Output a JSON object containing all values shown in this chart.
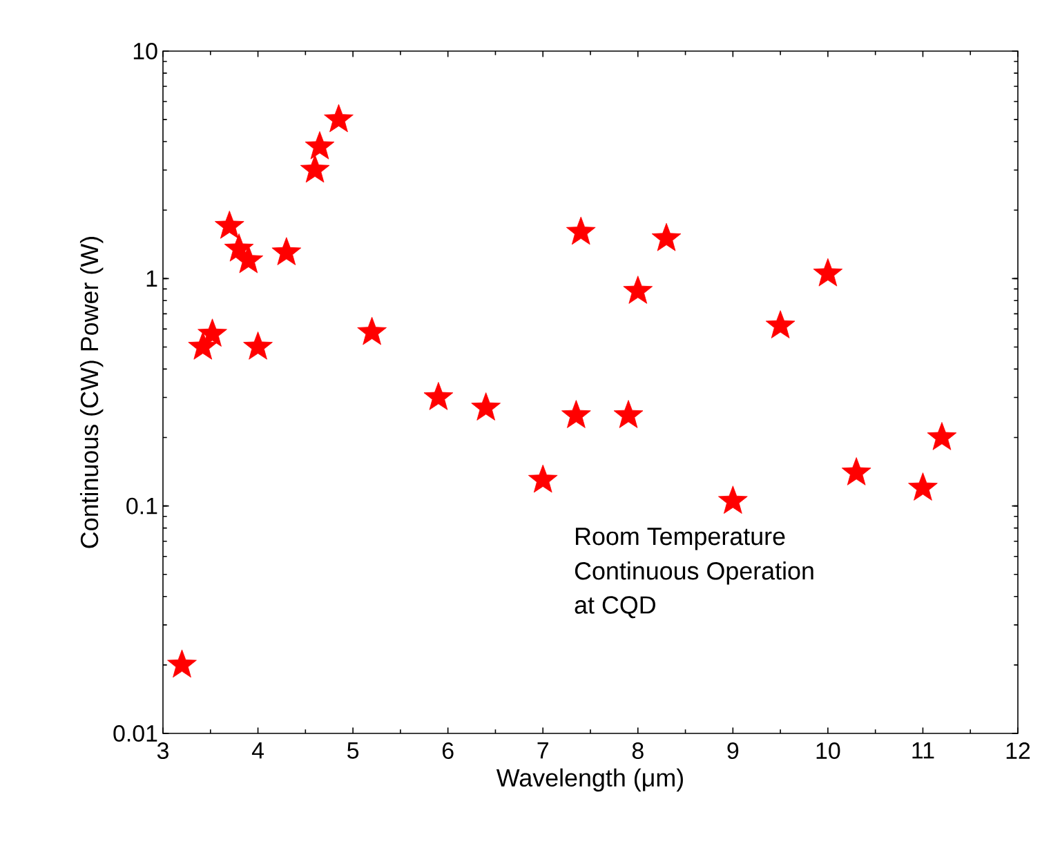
{
  "chart_data": {
    "type": "scatter",
    "xlabel": "Wavelength (μm)",
    "ylabel": "Continuous (CW) Power (W)",
    "annotations": [
      "Room Temperature",
      "Continuous Operation",
      "at CQD"
    ],
    "x": [
      3.2,
      3.42,
      3.52,
      3.7,
      3.8,
      3.9,
      4.0,
      4.3,
      4.6,
      4.65,
      4.85,
      5.2,
      5.9,
      6.4,
      7.0,
      7.35,
      7.4,
      7.9,
      8.0,
      8.3,
      9.0,
      9.5,
      10.0,
      10.3,
      11.0,
      11.2
    ],
    "series": [
      {
        "color": "#ff0000",
        "values": [
          0.02,
          0.5,
          0.57,
          1.7,
          1.35,
          1.2,
          0.5,
          1.3,
          3.0,
          3.8,
          5.0,
          0.58,
          0.3,
          0.27,
          0.13,
          0.25,
          1.6,
          0.25,
          0.88,
          1.5,
          0.105,
          0.62,
          1.05,
          0.14,
          0.12,
          0.2
        ]
      }
    ],
    "marker": "star",
    "log": "y",
    "grid": false,
    "xlim": [
      3,
      12
    ],
    "ylim": [
      0.01,
      10
    ],
    "xticks": [
      3,
      4,
      5,
      6,
      7,
      8,
      9,
      10,
      11,
      12
    ],
    "yticks": [
      0.01,
      0.1,
      1,
      10
    ]
  }
}
